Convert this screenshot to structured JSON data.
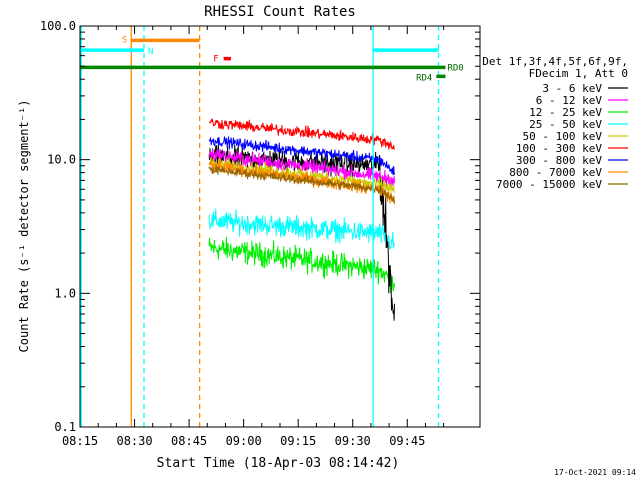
{
  "chart_data": {
    "type": "line",
    "title": "RHESSI Count Rates",
    "xlabel": "Start Time (18-Apr-03 08:14:42)",
    "ylabel": "Count Rate (s⁻¹ detector segment⁻¹)",
    "yscale": "log",
    "ylim": [
      0.1,
      100.0
    ],
    "xlim_minutes": [
      0,
      110
    ],
    "x_ticks": [
      {
        "label": "08:15",
        "minute": 0
      },
      {
        "label": "08:30",
        "minute": 15
      },
      {
        "label": "08:45",
        "minute": 30
      },
      {
        "label": "09:00",
        "minute": 45
      },
      {
        "label": "09:15",
        "minute": 60
      },
      {
        "label": "09:30",
        "minute": 75
      },
      {
        "label": "09:45",
        "minute": 90
      }
    ],
    "y_ticks": [
      {
        "label": "100.0",
        "value": 100.0
      },
      {
        "label": "10.0",
        "value": 10.0
      },
      {
        "label": "1.0",
        "value": 1.0
      },
      {
        "label": "0.1",
        "value": 0.1
      }
    ],
    "legend_header": [
      "Det 1f,3f,4f,5f,6f,9f,",
      "FDecim 1, Att 0"
    ],
    "series": [
      {
        "name": "3 - 6 keV",
        "color": "#000000",
        "start": 10.5,
        "end": 9.0,
        "late_end": 0.6,
        "noise": 0.12
      },
      {
        "name": "6 - 12 keV",
        "color": "#ff00ff",
        "start": 11.0,
        "end": 7.5,
        "late_end": 7.0,
        "noise": 0.08
      },
      {
        "name": "12 - 25 keV",
        "color": "#00ee00",
        "start": 2.2,
        "end": 1.5,
        "late_end": 1.2,
        "noise": 0.13
      },
      {
        "name": "25 - 50 keV",
        "color": "#00ffff",
        "start": 3.5,
        "end": 2.8,
        "late_end": 2.3,
        "noise": 0.12
      },
      {
        "name": "50 - 100 keV",
        "color": "#cccc00",
        "start": 9.5,
        "end": 6.5,
        "late_end": 6.0,
        "noise": 0.07
      },
      {
        "name": "100 - 300 keV",
        "color": "#ff0000",
        "start": 19.0,
        "end": 14.0,
        "late_end": 12.5,
        "noise": 0.06
      },
      {
        "name": "300 - 800 keV",
        "color": "#0000ff",
        "start": 14.0,
        "end": 10.0,
        "late_end": 8.0,
        "noise": 0.06
      },
      {
        "name": "800 - 7000 keV",
        "color": "#ff8800",
        "start": 9.0,
        "end": 6.0,
        "late_end": 5.0,
        "noise": 0.07
      },
      {
        "name": "7000 - 15000 keV",
        "color": "#996600",
        "start": 8.5,
        "end": 6.0,
        "late_end": 5.0,
        "noise": 0.05
      }
    ],
    "data_window_minutes": [
      35.5,
      86.5
    ],
    "vertical_lines": [
      {
        "minute": 0.3,
        "color": "#00ffff",
        "style": "solid"
      },
      {
        "minute": 14.1,
        "color": "#ff8800",
        "style": "solid"
      },
      {
        "minute": 17.6,
        "color": "#00ffff",
        "style": "dashed"
      },
      {
        "minute": 32.9,
        "color": "#ff8800",
        "style": "dashed"
      },
      {
        "minute": 80.6,
        "color": "#00ffff",
        "style": "solid"
      },
      {
        "minute": 98.6,
        "color": "#00ffff",
        "style": "dashed"
      }
    ],
    "flag_bars": [
      {
        "label": "S",
        "color": "#ff8800",
        "x0": 14.1,
        "x1": 32.9,
        "value": 78
      },
      {
        "label": "N",
        "color": "#00ffff",
        "x0": 0.0,
        "x1": 17.6,
        "value": 66
      },
      {
        "label": "F",
        "color": "#ff0000",
        "x0": 39.5,
        "x1": 41.5,
        "value": 57
      },
      {
        "label": "RD4",
        "color": "#008800",
        "x0": 98.0,
        "x1": 100.5,
        "value": 42
      },
      {
        "label": "",
        "color": "#00ffff",
        "x0": 80.6,
        "x1": 98.6,
        "value": 66
      },
      {
        "label": "RD0",
        "color": "#008800",
        "x0": 0.0,
        "x1": 100.5,
        "value": 49
      }
    ],
    "timestamp": "17-Oct-2021 09:14"
  }
}
